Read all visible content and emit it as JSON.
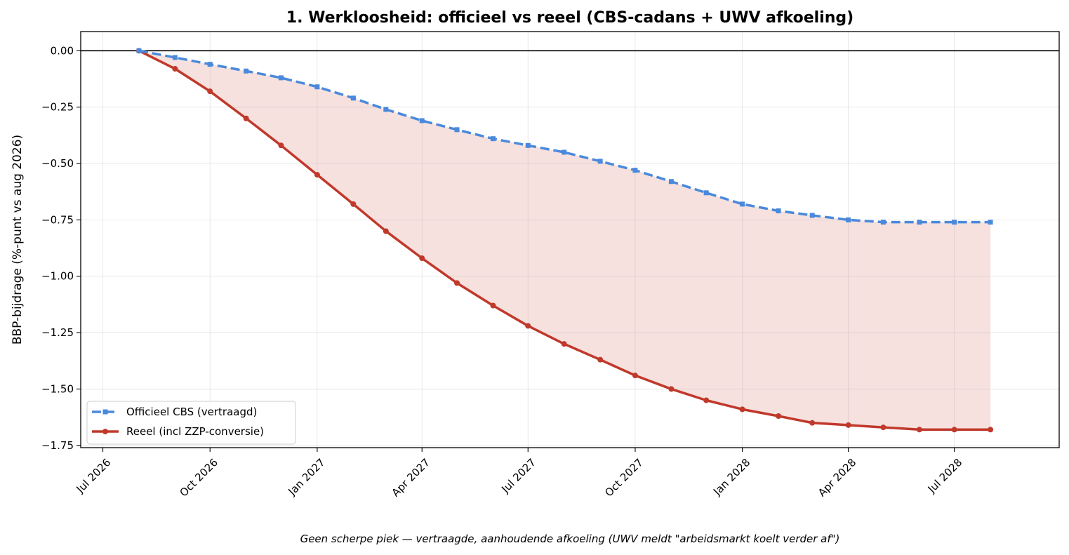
{
  "chart_data": {
    "type": "line",
    "title": "1. Werkloosheid: officieel vs reeel (CBS-cadans + UWV afkoeling)",
    "xlabel": "",
    "ylabel": "BBP-bijdrage (%-punt vs aug 2026)",
    "caption": "Geen scherpe piek — vertraagde, aanhoudende afkoeling (UWV meldt \"arbeidsmarkt koelt verder af\")",
    "x_tick_labels": [
      "Jul 2026",
      "Oct 2026",
      "Jan 2027",
      "Apr 2027",
      "Jul 2027",
      "Oct 2027",
      "Jan 2028",
      "Apr 2028",
      "Jul 2028"
    ],
    "y_ticks": [
      0.0,
      -0.25,
      -0.5,
      -0.75,
      -1.0,
      -1.25,
      -1.5,
      -1.75
    ],
    "y_tick_labels": [
      "0.00",
      "−0.25",
      "−0.50",
      "−0.75",
      "−1.00",
      "−1.25",
      "−1.50",
      "−1.75"
    ],
    "ylim": [
      -1.76,
      0.085
    ],
    "xlim": [
      "2026-06-12",
      "2028-09-29"
    ],
    "grid": true,
    "legend_position": "lower-left",
    "x": [
      "2026-08-01",
      "2026-09-01",
      "2026-10-01",
      "2026-11-01",
      "2026-12-01",
      "2027-01-01",
      "2027-02-01",
      "2027-03-01",
      "2027-04-01",
      "2027-05-01",
      "2027-06-01",
      "2027-07-01",
      "2027-08-01",
      "2027-09-01",
      "2027-10-01",
      "2027-11-01",
      "2027-12-01",
      "2028-01-01",
      "2028-02-01",
      "2028-03-01",
      "2028-04-01",
      "2028-05-01",
      "2028-06-01",
      "2028-07-01",
      "2028-08-01"
    ],
    "series": [
      {
        "name": "Officieel CBS (vertraagd)",
        "color": "#4a89dc",
        "style": "dashed",
        "values": [
          0.0,
          -0.03,
          -0.06,
          -0.09,
          -0.12,
          -0.16,
          -0.21,
          -0.26,
          -0.31,
          -0.35,
          -0.39,
          -0.42,
          -0.45,
          -0.49,
          -0.53,
          -0.58,
          -0.63,
          -0.68,
          -0.71,
          -0.73,
          -0.75,
          -0.76,
          -0.76,
          -0.76,
          -0.76
        ]
      },
      {
        "name": "Reeel (incl ZZP-conversie)",
        "color": "#c0392b",
        "style": "solid",
        "values": [
          0.0,
          -0.08,
          -0.18,
          -0.3,
          -0.42,
          -0.55,
          -0.68,
          -0.8,
          -0.92,
          -1.03,
          -1.13,
          -1.22,
          -1.3,
          -1.37,
          -1.44,
          -1.5,
          -1.55,
          -1.59,
          -1.62,
          -1.65,
          -1.66,
          -1.67,
          -1.68,
          -1.68,
          -1.68
        ]
      }
    ],
    "fill_between": {
      "color": "#c0392b",
      "opacity": 0.15
    }
  }
}
